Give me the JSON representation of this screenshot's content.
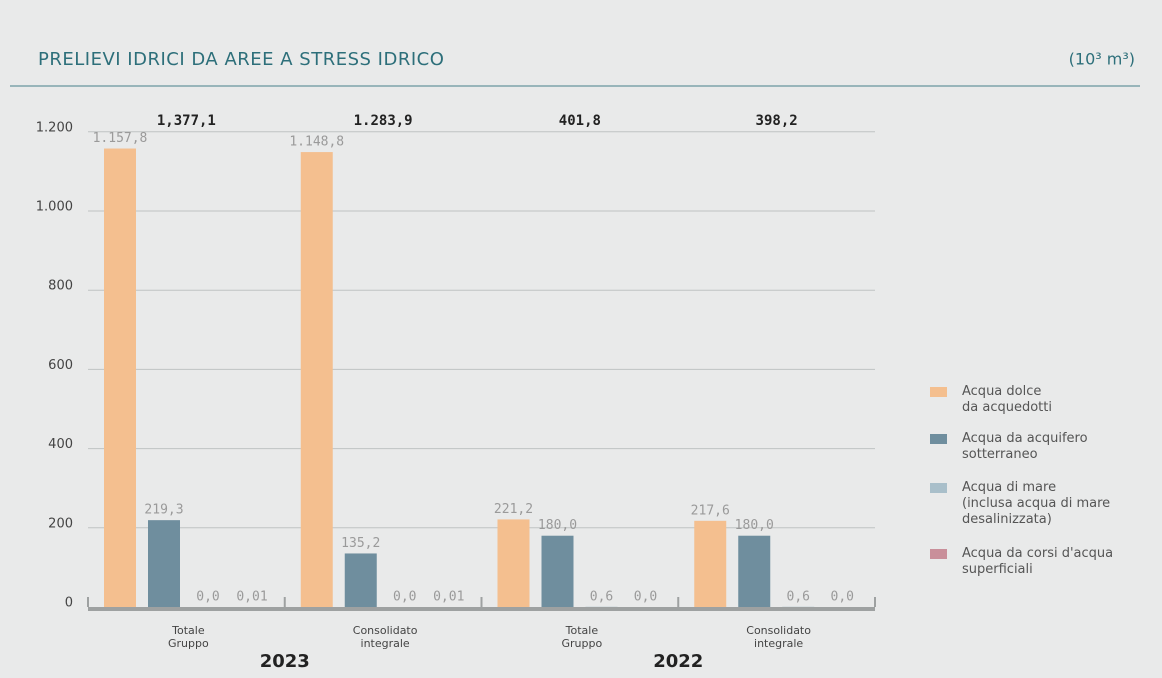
{
  "chart_data": {
    "type": "bar",
    "title": "PRELIEVI IDRICI DA AREE A STRESS IDRICO",
    "unit": "(10³ m³)",
    "categories": [
      "Totale\nGruppo",
      "Consolidato\nintegrale",
      "Totale\nGruppo",
      "Consolidato\nintegrale"
    ],
    "years": [
      "2023",
      "2022"
    ],
    "totals": [
      {
        "value": 1377.1,
        "label": "1,377,1"
      },
      {
        "value": 1283.9,
        "label": "1.283,9"
      },
      {
        "value": 401.8,
        "label": "401,8"
      },
      {
        "value": 398.2,
        "label": "398,2"
      }
    ],
    "series": [
      {
        "name": "Acqua dolce\nda acquedotti",
        "color": "#f4bf8f",
        "values": [
          1157.8,
          1148.8,
          221.2,
          217.6
        ],
        "value_labels": [
          "1.157,8",
          "1.148,8",
          "221,2",
          "217,6"
        ]
      },
      {
        "name": "Acqua da acquifero\nsotterraneo",
        "color": "#6f8e9e",
        "values": [
          219.3,
          135.2,
          180.0,
          180.0
        ],
        "value_labels": [
          "219,3",
          "135,2",
          "180,0",
          "180,0"
        ]
      },
      {
        "name": "Acqua di mare\n(inclusa acqua di mare\ndesalinizzata)",
        "color": "#a9bfca",
        "values": [
          0.0,
          0.0,
          0.6,
          0.6
        ],
        "value_labels": [
          "0,0",
          "0,0",
          "0,6",
          "0,6"
        ]
      },
      {
        "name": "Acqua da corsi d'acqua\nsuperficiali",
        "color": "#c98f9a",
        "values": [
          0.01,
          0.01,
          0.0,
          0.0
        ],
        "value_labels": [
          "0,01",
          "0,01",
          "0,0",
          "0,0"
        ]
      }
    ],
    "ylim": [
      0,
      1250
    ],
    "yticks": [
      0,
      200,
      400,
      600,
      800,
      {
        "value": 1000,
        "label": "1.000"
      },
      {
        "value": 1200,
        "label": "1.200"
      }
    ],
    "grid": true
  }
}
